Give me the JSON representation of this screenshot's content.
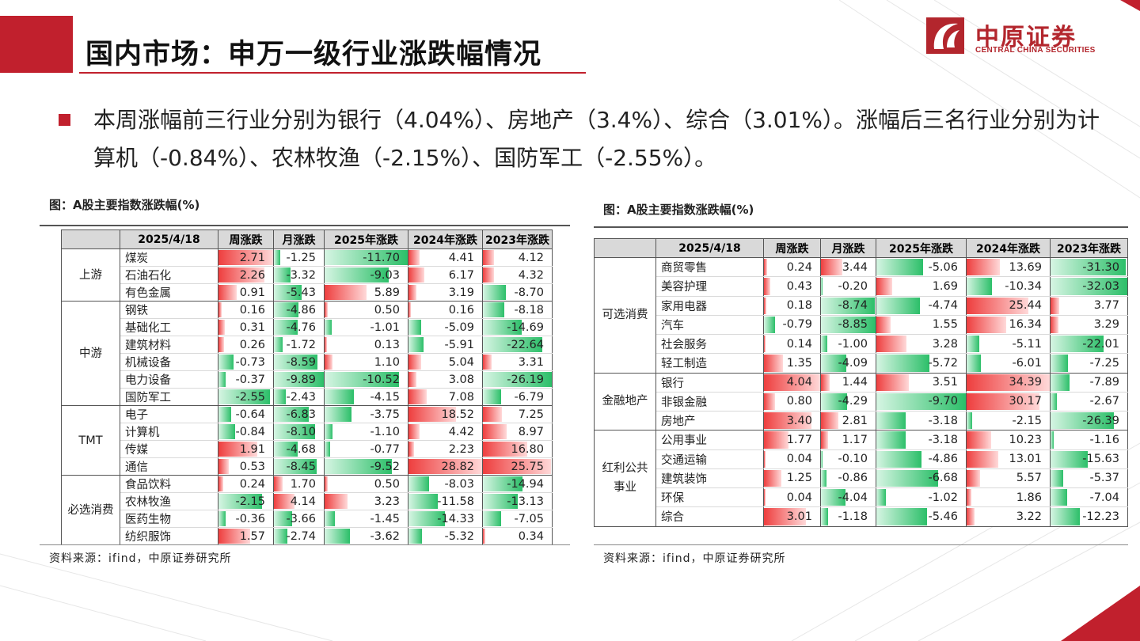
{
  "header": {
    "title": "国内市场：申万一级行业涨跌幅情况",
    "logo_cn": "中原证券",
    "logo_en": "CENTRAL CHINA SECURITIES"
  },
  "bullet": "本周涨幅前三行业分别为银行（4.04%）、房地产（3.4%）、综合（3.01%）。涨幅后三名行业分别为计算机（-0.84%）、农林牧渔（-2.15%）、国防军工（-2.55%）。",
  "colors": {
    "accent": "#c1202d",
    "up": "#ee3e3e",
    "down": "#2cbf69"
  },
  "left_table": {
    "caption": "图：A股主要指数涨跌幅(%)",
    "source": "资料来源：ifind，中原证券研究所",
    "headers": [
      "",
      "2025/4/18",
      "周涨跌",
      "月涨跌",
      "2025年涨跌",
      "2024年涨跌",
      "2023年涨跌"
    ],
    "groups": [
      {
        "name": "上游",
        "rows": [
          {
            "name": "煤炭",
            "v": [
              "2.71",
              "-1.25",
              "-11.70",
              "4.41",
              "4.12"
            ]
          },
          {
            "name": "石油石化",
            "v": [
              "2.26",
              "-3.32",
              "-9.03",
              "6.17",
              "4.32"
            ]
          },
          {
            "name": "有色金属",
            "v": [
              "0.91",
              "-5.43",
              "5.89",
              "3.19",
              "-8.70"
            ]
          }
        ]
      },
      {
        "name": "中游",
        "rows": [
          {
            "name": "钢铁",
            "v": [
              "0.16",
              "-4.86",
              "0.50",
              "0.16",
              "-8.18"
            ]
          },
          {
            "name": "基础化工",
            "v": [
              "0.31",
              "-4.76",
              "-1.01",
              "-5.09",
              "-14.69"
            ]
          },
          {
            "name": "建筑材料",
            "v": [
              "0.26",
              "-1.72",
              "0.13",
              "-5.91",
              "-22.64"
            ]
          },
          {
            "name": "机械设备",
            "v": [
              "-0.73",
              "-8.59",
              "1.10",
              "5.04",
              "3.31"
            ]
          },
          {
            "name": "电力设备",
            "v": [
              "-0.37",
              "-9.89",
              "-10.52",
              "3.08",
              "-26.19"
            ]
          },
          {
            "name": "国防军工",
            "v": [
              "-2.55",
              "-2.43",
              "-4.15",
              "7.08",
              "-6.79"
            ]
          }
        ]
      },
      {
        "name": "TMT",
        "rows": [
          {
            "name": "电子",
            "v": [
              "-0.64",
              "-6.83",
              "-3.75",
              "18.52",
              "7.25"
            ]
          },
          {
            "name": "计算机",
            "v": [
              "-0.84",
              "-8.10",
              "-1.10",
              "4.42",
              "8.97"
            ]
          },
          {
            "name": "传媒",
            "v": [
              "1.91",
              "-4.68",
              "-0.77",
              "2.23",
              "16.80"
            ]
          },
          {
            "name": "通信",
            "v": [
              "0.53",
              "-8.45",
              "-9.52",
              "28.82",
              "25.75"
            ]
          }
        ]
      },
      {
        "name": "必选消费",
        "rows": [
          {
            "name": "食品饮料",
            "v": [
              "0.24",
              "1.70",
              "0.50",
              "-8.03",
              "-14.94"
            ]
          },
          {
            "name": "农林牧渔",
            "v": [
              "-2.15",
              "4.14",
              "3.23",
              "-11.58",
              "-13.13"
            ]
          },
          {
            "name": "医药生物",
            "v": [
              "-0.36",
              "-3.66",
              "-1.45",
              "-14.33",
              "-7.05"
            ]
          },
          {
            "name": "纺织服饰",
            "v": [
              "1.57",
              "-2.74",
              "-3.62",
              "-5.32",
              "0.34"
            ]
          }
        ]
      }
    ]
  },
  "right_table": {
    "caption": "图：A股主要指数涨跌幅(%)",
    "source": "资料来源：ifind，中原证券研究所",
    "headers": [
      "",
      "2025/4/18",
      "周涨跌",
      "月涨跌",
      "2025年涨跌",
      "2024年涨跌",
      "2023年涨跌"
    ],
    "groups": [
      {
        "name": "可选消费",
        "rows": [
          {
            "name": "商贸零售",
            "v": [
              "0.24",
              "3.44",
              "-5.06",
              "13.69",
              "-31.30"
            ]
          },
          {
            "name": "美容护理",
            "v": [
              "0.43",
              "-0.20",
              "1.69",
              "-10.34",
              "-32.03"
            ]
          },
          {
            "name": "家用电器",
            "v": [
              "0.18",
              "-8.74",
              "-4.74",
              "25.44",
              "3.77"
            ]
          },
          {
            "name": "汽车",
            "v": [
              "-0.79",
              "-8.85",
              "1.55",
              "16.34",
              "3.29"
            ]
          },
          {
            "name": "社会服务",
            "v": [
              "0.14",
              "-1.00",
              "3.28",
              "-5.11",
              "-22.01"
            ]
          },
          {
            "name": "轻工制造",
            "v": [
              "1.35",
              "-4.09",
              "-5.72",
              "-6.01",
              "-7.25"
            ]
          }
        ]
      },
      {
        "name": "金融地产",
        "rows": [
          {
            "name": "银行",
            "v": [
              "4.04",
              "1.44",
              "3.51",
              "34.39",
              "-7.89"
            ]
          },
          {
            "name": "非银金融",
            "v": [
              "0.80",
              "-4.29",
              "-9.70",
              "30.17",
              "-2.67"
            ]
          },
          {
            "name": "房地产",
            "v": [
              "3.40",
              "2.81",
              "-3.18",
              "-2.15",
              "-26.39"
            ]
          }
        ]
      },
      {
        "name": "红利公共事业",
        "rows": [
          {
            "name": "公用事业",
            "v": [
              "1.77",
              "1.17",
              "-3.18",
              "10.23",
              "-1.16"
            ]
          },
          {
            "name": "交通运输",
            "v": [
              "0.04",
              "-0.10",
              "-4.86",
              "13.01",
              "-15.63"
            ]
          },
          {
            "name": "建筑装饰",
            "v": [
              "1.25",
              "-0.86",
              "-6.68",
              "5.57",
              "-5.37"
            ]
          },
          {
            "name": "环保",
            "v": [
              "0.04",
              "-4.04",
              "-1.02",
              "1.86",
              "-7.04"
            ]
          },
          {
            "name": "综合",
            "v": [
              "3.01",
              "-1.18",
              "-5.46",
              "3.22",
              "-12.23"
            ]
          }
        ]
      }
    ]
  }
}
